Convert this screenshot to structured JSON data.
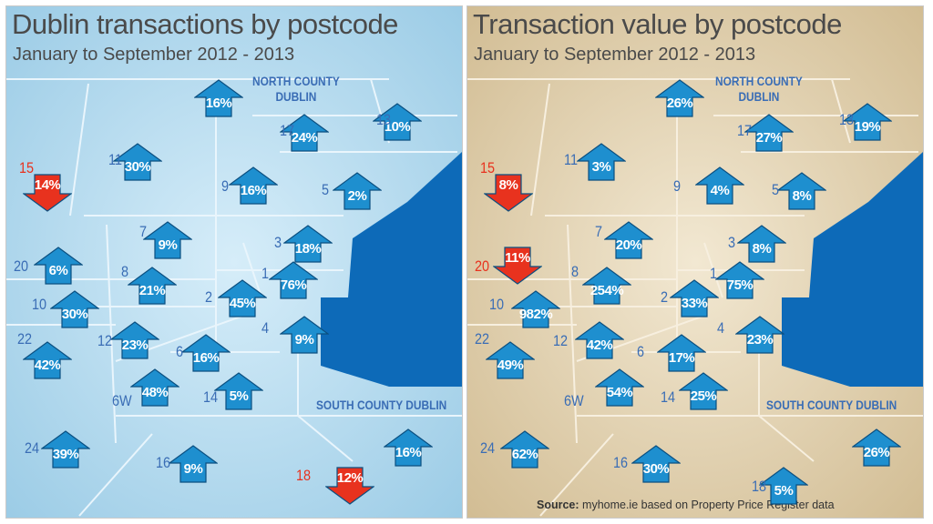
{
  "panels": [
    {
      "id": "left",
      "title": "Dublin transactions by postcode",
      "subtitle": "January to September 2012 - 2013",
      "north_label": [
        "NORTH COUNTY",
        "DUBLIN"
      ],
      "south_label": "SOUTH COUNTY DUBLIN",
      "land_color": "#a6d3eb",
      "sea_color": "#0d6ab8",
      "postcodes": [
        {
          "code": "",
          "value": "16%",
          "direction": "up"
        },
        {
          "code": "17",
          "value": "24%",
          "direction": "up"
        },
        {
          "code": "13",
          "value": "10%",
          "direction": "up"
        },
        {
          "code": "11",
          "value": "30%",
          "direction": "up"
        },
        {
          "code": "15",
          "value": "14%",
          "direction": "down"
        },
        {
          "code": "9",
          "value": "16%",
          "direction": "up"
        },
        {
          "code": "5",
          "value": "2%",
          "direction": "up"
        },
        {
          "code": "7",
          "value": "9%",
          "direction": "up"
        },
        {
          "code": "3",
          "value": "18%",
          "direction": "up"
        },
        {
          "code": "20",
          "value": "6%",
          "direction": "up"
        },
        {
          "code": "8",
          "value": "21%",
          "direction": "up"
        },
        {
          "code": "1",
          "value": "76%",
          "direction": "up"
        },
        {
          "code": "10",
          "value": "30%",
          "direction": "up"
        },
        {
          "code": "2",
          "value": "45%",
          "direction": "up"
        },
        {
          "code": "4",
          "value": "9%",
          "direction": "up"
        },
        {
          "code": "22",
          "value": "42%",
          "direction": "up"
        },
        {
          "code": "12",
          "value": "23%",
          "direction": "up"
        },
        {
          "code": "6",
          "value": "16%",
          "direction": "up"
        },
        {
          "code": "6W",
          "value": "48%",
          "direction": "up"
        },
        {
          "code": "14",
          "value": "5%",
          "direction": "up"
        },
        {
          "code": "24",
          "value": "39%",
          "direction": "up"
        },
        {
          "code": "",
          "value": "16%",
          "direction": "up"
        },
        {
          "code": "16",
          "value": "9%",
          "direction": "up"
        },
        {
          "code": "18",
          "value": "12%",
          "direction": "down"
        }
      ]
    },
    {
      "id": "right",
      "title": "Transaction value by postcode",
      "subtitle": "January to September 2012 - 2013",
      "north_label": [
        "NORTH COUNTY",
        "DUBLIN"
      ],
      "south_label": "SOUTH COUNTY DUBLIN",
      "land_color": "#dcc9a3",
      "sea_color": "#0d6ab8",
      "postcodes": [
        {
          "code": "",
          "value": "26%",
          "direction": "up"
        },
        {
          "code": "17",
          "value": "27%",
          "direction": "up"
        },
        {
          "code": "13",
          "value": "19%",
          "direction": "up"
        },
        {
          "code": "11",
          "value": "3%",
          "direction": "up"
        },
        {
          "code": "15",
          "value": "8%",
          "direction": "down"
        },
        {
          "code": "9",
          "value": "4%",
          "direction": "up"
        },
        {
          "code": "5",
          "value": "8%",
          "direction": "up"
        },
        {
          "code": "7",
          "value": "20%",
          "direction": "up"
        },
        {
          "code": "3",
          "value": "8%",
          "direction": "up"
        },
        {
          "code": "20",
          "value": "11%",
          "direction": "down"
        },
        {
          "code": "8",
          "value": "254%",
          "direction": "up"
        },
        {
          "code": "1",
          "value": "75%",
          "direction": "up"
        },
        {
          "code": "10",
          "value": "982%",
          "direction": "up"
        },
        {
          "code": "2",
          "value": "33%",
          "direction": "up"
        },
        {
          "code": "4",
          "value": "23%",
          "direction": "up"
        },
        {
          "code": "22",
          "value": "49%",
          "direction": "up"
        },
        {
          "code": "12",
          "value": "42%",
          "direction": "up"
        },
        {
          "code": "6",
          "value": "17%",
          "direction": "up"
        },
        {
          "code": "6W",
          "value": "54%",
          "direction": "up"
        },
        {
          "code": "14",
          "value": "25%",
          "direction": "up"
        },
        {
          "code": "24",
          "value": "62%",
          "direction": "up"
        },
        {
          "code": "",
          "value": "26%",
          "direction": "up"
        },
        {
          "code": "16",
          "value": "30%",
          "direction": "up"
        },
        {
          "code": "18",
          "value": "5%",
          "direction": "up"
        }
      ]
    }
  ],
  "source": {
    "label": "Source:",
    "text": "myhome.ie based on Property Price Register data"
  },
  "colors": {
    "up_arrow": "#1e8fcf",
    "down_arrow": "#e8321e",
    "code_text": "#3a6db5",
    "code_negative": "#e8321e"
  }
}
